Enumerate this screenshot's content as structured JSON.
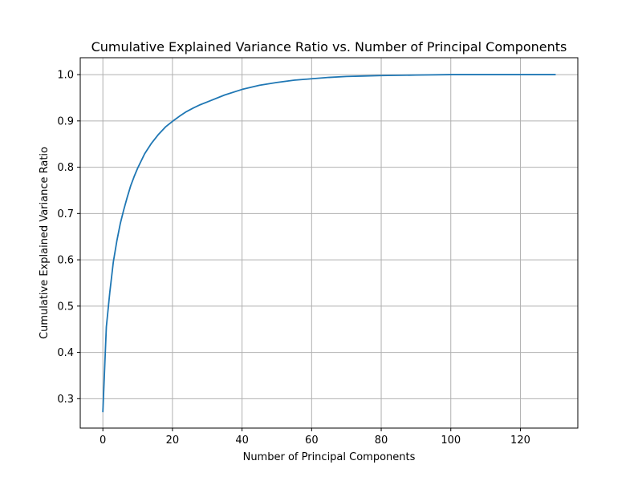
{
  "chart_data": {
    "type": "line",
    "title": "Cumulative Explained Variance Ratio vs. Number of Principal Components",
    "xlabel": "Number of Principal Components",
    "ylabel": "Cumulative Explained Variance Ratio",
    "xlim": [
      -6.5,
      136.5
    ],
    "ylim": [
      0.2365,
      1.0365
    ],
    "xticks": [
      0,
      20,
      40,
      60,
      80,
      100,
      120
    ],
    "yticks": [
      0.3,
      0.4,
      0.5,
      0.6,
      0.7,
      0.8,
      0.9,
      1.0
    ],
    "xtick_labels": [
      "0",
      "20",
      "40",
      "60",
      "80",
      "100",
      "120"
    ],
    "ytick_labels": [
      "0.3",
      "0.4",
      "0.5",
      "0.6",
      "0.7",
      "0.8",
      "0.9",
      "1.0"
    ],
    "grid": true,
    "series": [
      {
        "color": "#1f77b4",
        "x": [
          0,
          1,
          2,
          3,
          4,
          5,
          6,
          7,
          8,
          9,
          10,
          12,
          14,
          16,
          18,
          20,
          22,
          24,
          26,
          28,
          30,
          35,
          40,
          45,
          50,
          55,
          60,
          65,
          70,
          75,
          80,
          90,
          100,
          110,
          120,
          130
        ],
        "y": [
          0.272,
          0.455,
          0.53,
          0.595,
          0.64,
          0.678,
          0.708,
          0.735,
          0.76,
          0.78,
          0.798,
          0.829,
          0.852,
          0.871,
          0.887,
          0.899,
          0.91,
          0.92,
          0.928,
          0.935,
          0.941,
          0.956,
          0.968,
          0.977,
          0.983,
          0.988,
          0.991,
          0.994,
          0.996,
          0.997,
          0.998,
          0.999,
          1.0,
          1.0,
          1.0,
          1.0
        ]
      }
    ]
  }
}
